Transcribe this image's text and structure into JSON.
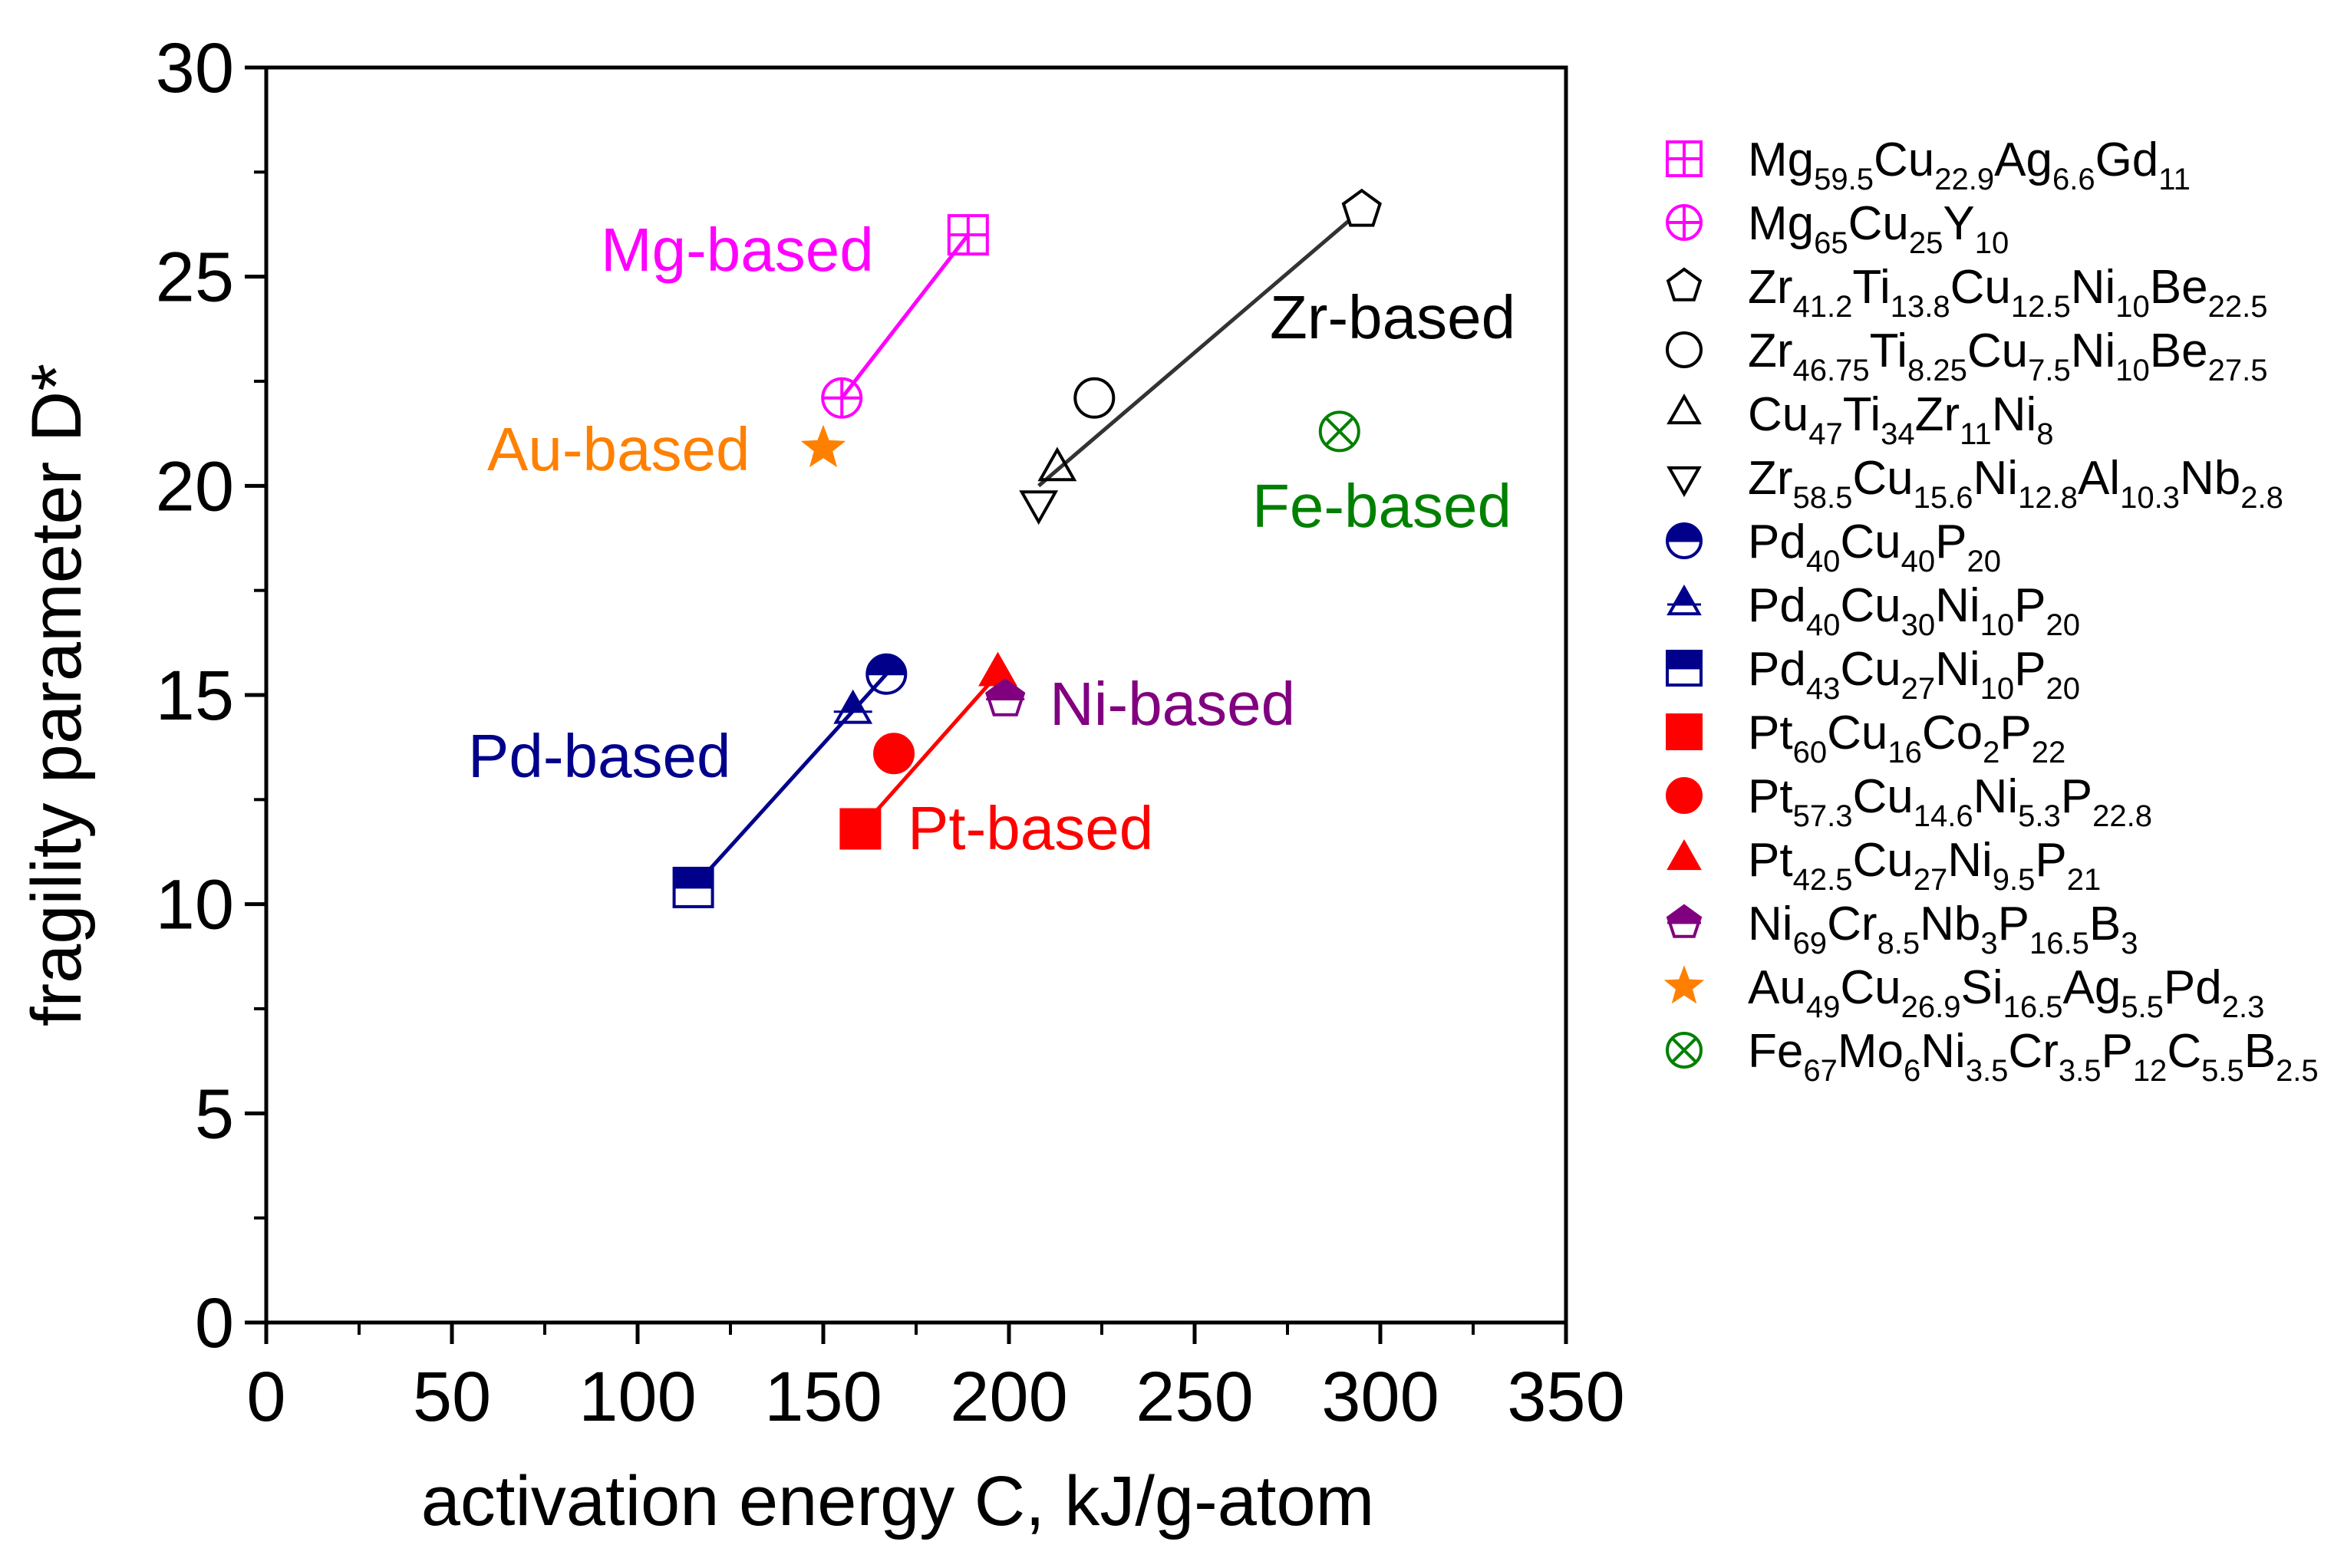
{
  "chart_data": {
    "type": "scatter",
    "title": "",
    "xlabel": "activation energy C, kJ/g-atom",
    "ylabel": "fragility parameter D*",
    "xlim": [
      0,
      350
    ],
    "ylim": [
      0,
      30
    ],
    "xticks": [
      0,
      50,
      100,
      150,
      200,
      250,
      300,
      350
    ],
    "yticks": [
      0,
      5,
      10,
      15,
      20,
      25,
      30
    ],
    "grid": false,
    "legend_position": "right",
    "series": [
      {
        "key": "mg1",
        "name": "Mg59.5Cu22.9Ag6.6Gd11",
        "label_parts": [
          [
            "Mg",
            "59.5"
          ],
          [
            "Cu",
            "22.9"
          ],
          [
            "Ag",
            "6.6"
          ],
          [
            "Gd",
            "11"
          ]
        ],
        "marker": "square-plus",
        "color": "#ff00ff",
        "x": 189,
        "y": 26.0
      },
      {
        "key": "mg2",
        "name": "Mg65Cu25Y10",
        "label_parts": [
          [
            "Mg",
            "65"
          ],
          [
            "Cu",
            "25"
          ],
          [
            "Y",
            "10"
          ]
        ],
        "marker": "circle-plus",
        "color": "#ff00ff",
        "x": 155,
        "y": 22.1
      },
      {
        "key": "zr1",
        "name": "Zr41.2Ti13.8Cu12.5Ni10Be22.5",
        "label_parts": [
          [
            "Zr",
            "41.2"
          ],
          [
            "Ti",
            "13.8"
          ],
          [
            "Cu",
            "12.5"
          ],
          [
            "Ni",
            "10"
          ],
          [
            "Be",
            "22.5"
          ]
        ],
        "marker": "pentagon-open",
        "color": "#000000",
        "x": 295,
        "y": 26.6
      },
      {
        "key": "zr2",
        "name": "Zr46.75Ti8.25Cu7.5Ni10Be27.5",
        "label_parts": [
          [
            "Zr",
            "46.75"
          ],
          [
            "Ti",
            "8.25"
          ],
          [
            "Cu",
            "7.5"
          ],
          [
            "Ni",
            "10"
          ],
          [
            "Be",
            "27.5"
          ]
        ],
        "marker": "circle-open",
        "color": "#000000",
        "x": 223,
        "y": 22.1
      },
      {
        "key": "cu1",
        "name": "Cu47Ti34Zr11Ni8",
        "label_parts": [
          [
            "Cu",
            "47"
          ],
          [
            "Ti",
            "34"
          ],
          [
            "Zr",
            "11"
          ],
          [
            "Ni",
            "8"
          ]
        ],
        "marker": "triangle-up-open",
        "color": "#000000",
        "x": 213,
        "y": 20.4
      },
      {
        "key": "zr3",
        "name": "Zr58.5Cu15.6Ni12.8Al10.3Nb2.8",
        "label_parts": [
          [
            "Zr",
            "58.5"
          ],
          [
            "Cu",
            "15.6"
          ],
          [
            "Ni",
            "12.8"
          ],
          [
            "Al",
            "10.3"
          ],
          [
            "Nb",
            "2.8"
          ]
        ],
        "marker": "triangle-down-open",
        "color": "#000000",
        "x": 208,
        "y": 19.6
      },
      {
        "key": "pd1",
        "name": "Pd40Cu40P20",
        "label_parts": [
          [
            "Pd",
            "40"
          ],
          [
            "Cu",
            "40"
          ],
          [
            "P",
            "20"
          ]
        ],
        "marker": "circle-half",
        "color": "#00008b",
        "x": 167,
        "y": 15.5
      },
      {
        "key": "pd2",
        "name": "Pd40Cu30Ni10P20",
        "label_parts": [
          [
            "Pd",
            "40"
          ],
          [
            "Cu",
            "30"
          ],
          [
            "Ni",
            "10"
          ],
          [
            "P",
            "20"
          ]
        ],
        "marker": "triangle-half",
        "color": "#00008b",
        "x": 158,
        "y": 14.6
      },
      {
        "key": "pd3",
        "name": "Pd43Cu27Ni10P20",
        "label_parts": [
          [
            "Pd",
            "43"
          ],
          [
            "Cu",
            "27"
          ],
          [
            "Ni",
            "10"
          ],
          [
            "P",
            "20"
          ]
        ],
        "marker": "square-half",
        "color": "#00008b",
        "x": 115,
        "y": 10.4
      },
      {
        "key": "pt1",
        "name": "Pt60Cu16Co2P22",
        "label_parts": [
          [
            "Pt",
            "60"
          ],
          [
            "Cu",
            "16"
          ],
          [
            "Co",
            "2"
          ],
          [
            "P",
            "22"
          ]
        ],
        "marker": "square",
        "color": "#ff0000",
        "x": 160,
        "y": 11.8
      },
      {
        "key": "pt2",
        "name": "Pt57.3Cu14.6Ni5.3P22.8",
        "label_parts": [
          [
            "Pt",
            "57.3"
          ],
          [
            "Cu",
            "14.6"
          ],
          [
            "Ni",
            "5.3"
          ],
          [
            "P",
            "22.8"
          ]
        ],
        "marker": "circle",
        "color": "#ff0000",
        "x": 169,
        "y": 13.6
      },
      {
        "key": "pt3",
        "name": "Pt42.5Cu27Ni9.5P21",
        "label_parts": [
          [
            "Pt",
            "42.5"
          ],
          [
            "Cu",
            "27"
          ],
          [
            "Ni",
            "9.5"
          ],
          [
            "P",
            "21"
          ]
        ],
        "marker": "triangle-up",
        "color": "#ff0000",
        "x": 197,
        "y": 15.5
      },
      {
        "key": "ni1",
        "name": "Ni69Cr8.5Nb3P16.5B3",
        "label_parts": [
          [
            "Ni",
            "69"
          ],
          [
            "Cr",
            "8.5"
          ],
          [
            "Nb",
            "3"
          ],
          [
            "P",
            "16.5"
          ],
          [
            "B",
            "3"
          ]
        ],
        "marker": "pentagon-half",
        "color": "#800080",
        "x": 199,
        "y": 14.9
      },
      {
        "key": "au1",
        "name": "Au49Cu26.9Si16.5Ag5.5Pd2.3",
        "label_parts": [
          [
            "Au",
            "49"
          ],
          [
            "Cu",
            "26.9"
          ],
          [
            "Si",
            "16.5"
          ],
          [
            "Ag",
            "5.5"
          ],
          [
            "Pd",
            "2.3"
          ]
        ],
        "marker": "star",
        "color": "#ff8000",
        "x": 150,
        "y": 20.9
      },
      {
        "key": "fe1",
        "name": "Fe67Mo6Ni3.5Cr3.5P12C5.5B2.5",
        "label_parts": [
          [
            "Fe",
            "67"
          ],
          [
            "Mo",
            "6"
          ],
          [
            "Ni",
            "3.5"
          ],
          [
            "Cr",
            "3.5"
          ],
          [
            "P",
            "12"
          ],
          [
            "C",
            "5.5"
          ],
          [
            "B",
            "2.5"
          ]
        ],
        "marker": "circle-x",
        "color": "#008000",
        "x": 289,
        "y": 21.3
      }
    ],
    "fit_lines": [
      {
        "name": "Mg fit",
        "color": "#ff00ff",
        "x": [
          155,
          189
        ],
        "y": [
          22.1,
          26.0
        ]
      },
      {
        "name": "Zr fit",
        "color": "#333333",
        "x": [
          208,
          295
        ],
        "y": [
          20.0,
          26.6
        ]
      },
      {
        "name": "Pd fit",
        "color": "#00008b",
        "x": [
          115,
          167
        ],
        "y": [
          10.4,
          15.5
        ]
      },
      {
        "name": "Pt fit",
        "color": "#ff0000",
        "x": [
          160,
          197
        ],
        "y": [
          11.8,
          15.5
        ]
      }
    ],
    "annotations": [
      {
        "key": "mg",
        "text": "Mg-based",
        "color": "#ff00ff"
      },
      {
        "key": "zr",
        "text": "Zr-based",
        "color": "#000000"
      },
      {
        "key": "au",
        "text": "Au-based",
        "color": "#ff8000"
      },
      {
        "key": "fe",
        "text": "Fe-based",
        "color": "#008000"
      },
      {
        "key": "ni",
        "text": "Ni-based",
        "color": "#800080"
      },
      {
        "key": "pd",
        "text": "Pd-based",
        "color": "#00008b"
      },
      {
        "key": "pt",
        "text": "Pt-based",
        "color": "#ff0000"
      }
    ]
  }
}
